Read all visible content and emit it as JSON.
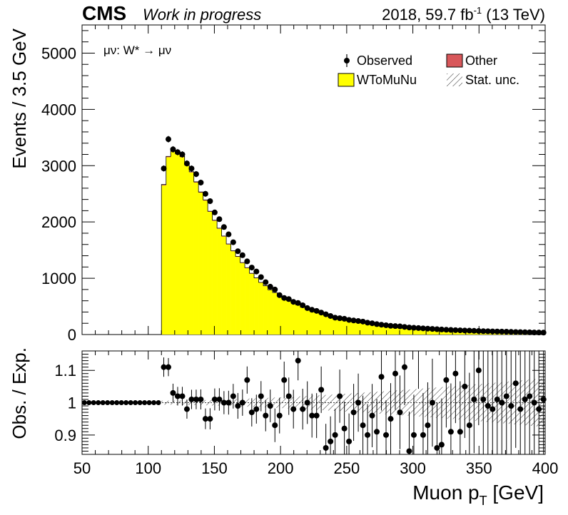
{
  "header": {
    "experiment": "CMS",
    "status": "Work in progress",
    "lumi": "2018, 59.7 fb",
    "lumi_sup": "-1",
    "energy": " (13 TeV)"
  },
  "chart_data": [
    {
      "type": "bar",
      "panel": "main",
      "annotation": "μν: W* → μν",
      "xlabel": "Muon p",
      "xlabel_sub": "T",
      "xlabel_unit": " [GeV]",
      "ylabel": "Events / 3.5 GeV",
      "xlim": [
        50,
        400
      ],
      "ylim": [
        0,
        5500
      ],
      "yticks": [
        0,
        1000,
        2000,
        3000,
        4000,
        5000
      ],
      "xticks": [
        50,
        100,
        150,
        200,
        250,
        300,
        350,
        400
      ],
      "legend_position": "top-right",
      "legend": [
        {
          "name": "Observed",
          "marker": "point"
        },
        {
          "name": "Other",
          "color": "#d8575a"
        },
        {
          "name": "WToMuNu",
          "color": "#ffff00"
        },
        {
          "name": "Stat. unc.",
          "marker": "hatch"
        }
      ],
      "bin_width": 3.5,
      "x_start": 110,
      "stack": [
        {
          "name": "WToMuNu",
          "color": "#ffff00",
          "values": [
            2650,
            3150,
            3250,
            3200,
            3150,
            3000,
            2880,
            2700,
            2520,
            2380,
            2180,
            2020,
            1880,
            1740,
            1600,
            1480,
            1380,
            1270,
            1180,
            1080,
            1000,
            920,
            860,
            790,
            740,
            690,
            640,
            600,
            560,
            520,
            480,
            450,
            420,
            395,
            370,
            345,
            320,
            300,
            285,
            270,
            255,
            240,
            225,
            212,
            200,
            190,
            180,
            170,
            160,
            152,
            145,
            138,
            130,
            124,
            118,
            112,
            107,
            102,
            97,
            92,
            88,
            84,
            80,
            76,
            73,
            70,
            67,
            64,
            61,
            58,
            56,
            54,
            52,
            50,
            48,
            46,
            44,
            42,
            40,
            38,
            36,
            35,
            34,
            33,
            32,
            31
          ]
        },
        {
          "name": "Other",
          "color": "#d8575a",
          "values": [
            15,
            15,
            15,
            15,
            14,
            14,
            13,
            13,
            12,
            12,
            11,
            11,
            10,
            10,
            9,
            9,
            9,
            8,
            8,
            8,
            7,
            7,
            7,
            6,
            6,
            6,
            6,
            5,
            5,
            5,
            5,
            5,
            4,
            4,
            4,
            4,
            4,
            4,
            3,
            3,
            3,
            3,
            3,
            3,
            3,
            3,
            3,
            2,
            2,
            2,
            2,
            2,
            2,
            2,
            2,
            2,
            2,
            2,
            2,
            2,
            2,
            2,
            1,
            1,
            1,
            1,
            1,
            1,
            1,
            1,
            1,
            1,
            1,
            1,
            1,
            1,
            1,
            1,
            1,
            1,
            1,
            1,
            1,
            1,
            1,
            1
          ]
        }
      ],
      "observed": [
        2950,
        3470,
        3290,
        3240,
        3200,
        3040,
        2950,
        2850,
        2700,
        2500,
        2370,
        2170,
        2050,
        1910,
        1780,
        1640,
        1480,
        1410,
        1300,
        1190,
        1120,
        1020,
        930,
        850,
        800,
        700,
        650,
        630,
        580,
        560,
        520,
        470,
        440,
        420,
        390,
        360,
        330,
        300,
        290,
        280,
        260,
        250,
        240,
        230,
        210,
        200,
        185,
        175,
        165,
        155,
        150,
        145,
        135,
        125,
        120,
        115,
        110,
        105,
        100,
        95,
        90,
        85,
        82,
        78,
        75,
        72,
        69,
        66,
        63,
        60,
        58,
        56,
        54,
        52,
        50,
        47,
        45,
        43,
        41,
        39,
        37,
        36,
        35,
        34,
        33,
        32
      ]
    },
    {
      "type": "scatter",
      "panel": "ratio",
      "ylabel": "Obs. / Exp.",
      "xlim": [
        50,
        400
      ],
      "ylim": [
        0.84,
        1.16
      ],
      "yticks": [
        0.9,
        1,
        1.1
      ],
      "ytick_labels": [
        "0.9",
        "1",
        "1.1"
      ],
      "x_start": 110,
      "bin_width": 3.5,
      "ratio": [
        1.11,
        1.11,
        1.03,
        1.02,
        1.02,
        0.98,
        1.01,
        1.01,
        1.01,
        0.95,
        0.95,
        1.01,
        1.01,
        1.0,
        1.0,
        1.02,
        0.99,
        1.0,
        1.07,
        0.97,
        0.98,
        1.02,
        0.96,
        0.99,
        0.93,
        0.96,
        1.07,
        1.02,
        0.98,
        1.13,
        0.98,
        1.0,
        0.96,
        0.96,
        1.04,
        0.86,
        0.88,
        0.9,
        1.02,
        0.92,
        0.88,
        0.97,
        1.0,
        0.93,
        0.9,
        0.96,
        0.91,
        1.08,
        0.9,
        0.95,
        1.09,
        0.97,
        1.11,
        0.85,
        0.9,
        1.17,
        0.9,
        0.93,
        1.0,
        0.86,
        0.87,
        1.07,
        0.91,
        1.09,
        0.91,
        1.05,
        0.93,
        1.01,
        1.1,
        1.01,
        0.99,
        0.98,
        1.01,
        1.0,
        1.02,
        0.99,
        1.06,
        0.98,
        1.01,
        1.02,
        1.0,
        0.98,
        1.01,
        1.02,
        0.99,
        1.01
      ],
      "unc_band": [
        0.006,
        0.08
      ]
    }
  ]
}
